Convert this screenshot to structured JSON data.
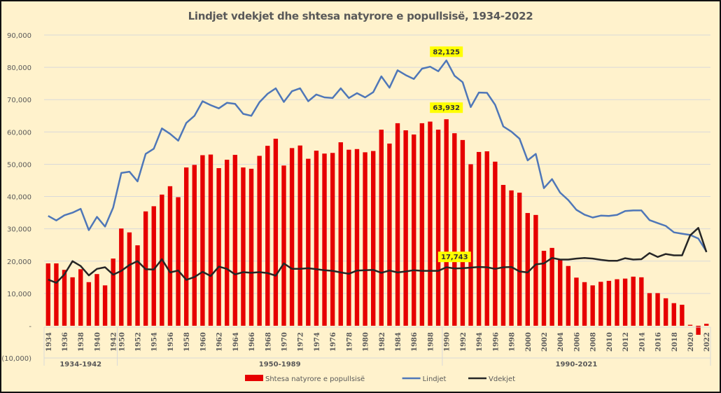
{
  "chart_data": {
    "type": "bar",
    "title": "Lindjet vdekjet dhe shtesa natyrore e popullsisë, 1934-2022",
    "xlabel": "",
    "ylabel": "",
    "ylim": [
      -10000,
      90000
    ],
    "yticks": [
      -10000,
      0,
      10000,
      20000,
      30000,
      40000,
      50000,
      60000,
      70000,
      80000,
      90000
    ],
    "ytick_labels": [
      "(10,000)",
      "-",
      "10,000",
      "20,000",
      "30,000",
      "40,000",
      "50,000",
      "60,000",
      "70,000",
      "80,000",
      "90,000"
    ],
    "grid": true,
    "legend_position": "bottom",
    "groups": [
      {
        "label": "1934-1942",
        "start": 1934,
        "end": 1942
      },
      {
        "label": "1950-1989",
        "start": 1950,
        "end": 1989
      },
      {
        "label": "1990-2021",
        "start": 1990,
        "end": 2022
      }
    ],
    "categories": [
      1934,
      1935,
      1936,
      1937,
      1938,
      1939,
      1940,
      1941,
      1942,
      1950,
      1951,
      1952,
      1953,
      1954,
      1955,
      1956,
      1957,
      1958,
      1959,
      1960,
      1961,
      1962,
      1963,
      1964,
      1965,
      1966,
      1967,
      1968,
      1969,
      1970,
      1971,
      1972,
      1973,
      1974,
      1975,
      1976,
      1977,
      1978,
      1979,
      1980,
      1981,
      1982,
      1983,
      1984,
      1985,
      1986,
      1987,
      1988,
      1989,
      1990,
      1991,
      1992,
      1993,
      1994,
      1995,
      1996,
      1997,
      1998,
      1999,
      2000,
      2001,
      2002,
      2003,
      2004,
      2005,
      2006,
      2007,
      2008,
      2009,
      2010,
      2011,
      2012,
      2013,
      2014,
      2015,
      2016,
      2017,
      2018,
      2019,
      2020,
      2021,
      2022
    ],
    "series": [
      {
        "name": "Shtesa natyrore e popullsisë",
        "type": "bar",
        "color": "#e60000",
        "values": [
          19300,
          19300,
          17300,
          15000,
          17500,
          13500,
          16000,
          12500,
          20800,
          30100,
          28900,
          24900,
          35400,
          37000,
          40600,
          43200,
          39800,
          49000,
          49800,
          52800,
          53000,
          48800,
          51400,
          52900,
          49000,
          48600,
          52600,
          55700,
          57900,
          49600,
          55000,
          55800,
          51700,
          54200,
          53300,
          53500,
          56800,
          54500,
          54700,
          53700,
          54100,
          60700,
          56400,
          62700,
          60500,
          59200,
          62700,
          63200,
          60700,
          63932,
          59600,
          57500,
          50000,
          53800,
          54000,
          50800,
          43600,
          41900,
          41200,
          34900,
          34300,
          23200,
          24100,
          20500,
          18500,
          14900,
          13500,
          12500,
          13600,
          13900,
          14400,
          14600,
          15200,
          15000,
          10100,
          10100,
          8500,
          7000,
          6500,
          300,
          -2800,
          600
        ]
      },
      {
        "name": "Lindjet",
        "type": "line",
        "color": "#4f77b8",
        "values": [
          34000,
          32600,
          34200,
          35000,
          36200,
          29600,
          33700,
          30700,
          36600,
          47300,
          47700,
          44700,
          53200,
          54800,
          61100,
          59400,
          57300,
          62800,
          65000,
          69500,
          68300,
          67300,
          69000,
          68700,
          65600,
          65000,
          69200,
          71800,
          73500,
          69300,
          72600,
          73500,
          69500,
          71600,
          70700,
          70500,
          73500,
          70500,
          72000,
          70700,
          72300,
          77200,
          73700,
          79100,
          77600,
          76400,
          79600,
          80200,
          78800,
          82125,
          77400,
          75400,
          67700,
          72200,
          72100,
          68400,
          61700,
          60100,
          57900,
          51200,
          53200,
          42600,
          45400,
          41200,
          38900,
          35900,
          34400,
          33500,
          34100,
          34000,
          34300,
          35500,
          35700,
          35700,
          32700,
          31800,
          30900,
          28900,
          28500,
          28100,
          27000,
          23000
        ]
      },
      {
        "name": "Vdekjet",
        "type": "line",
        "color": "#262626",
        "values": [
          14300,
          13300,
          15900,
          20000,
          18500,
          15600,
          17600,
          18100,
          15800,
          17000,
          18800,
          20000,
          17500,
          17400,
          20600,
          16500,
          17100,
          14200,
          15100,
          16700,
          15400,
          18300,
          17600,
          15900,
          16600,
          16400,
          16600,
          16300,
          15500,
          19300,
          17600,
          17600,
          17800,
          17500,
          17200,
          17000,
          16500,
          16100,
          17100,
          17200,
          17300,
          16400,
          17100,
          16500,
          16800,
          17200,
          17000,
          17000,
          17000,
          18100,
          17743,
          17800,
          18000,
          18200,
          18100,
          17600,
          18100,
          18200,
          16800,
          16500,
          19000,
          19300,
          21000,
          20500,
          20500,
          20800,
          21000,
          20800,
          20400,
          20100,
          20100,
          20900,
          20500,
          20600,
          22500,
          21300,
          22200,
          21800,
          21800,
          28000,
          30300,
          22800
        ]
      }
    ],
    "annotations": [
      {
        "series": "Lindjet",
        "year": 1990,
        "text": "82,125"
      },
      {
        "series": "Shtesa natyrore e popullsisë",
        "year": 1990,
        "text": "63,932"
      },
      {
        "series": "Vdekjet",
        "year": 1991,
        "text": "17,743"
      }
    ]
  }
}
